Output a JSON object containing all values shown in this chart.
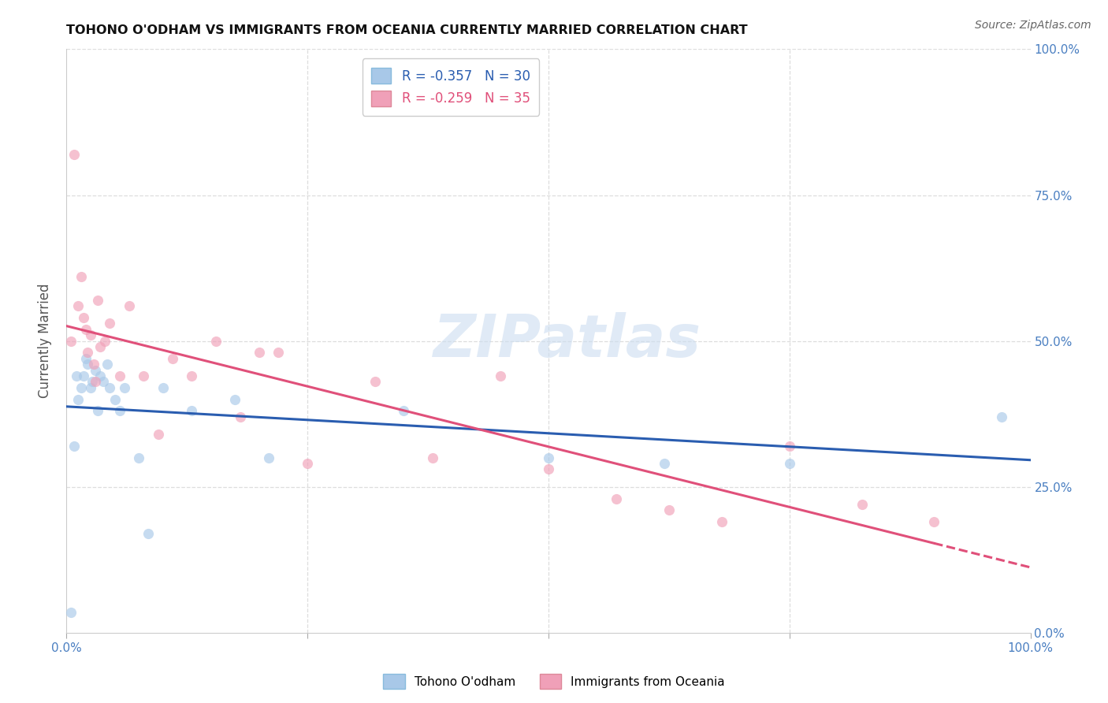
{
  "title": "TOHONO O'ODHAM VS IMMIGRANTS FROM OCEANIA CURRENTLY MARRIED CORRELATION CHART",
  "source": "Source: ZipAtlas.com",
  "ylabel": "Currently Married",
  "xlim": [
    0.0,
    1.0
  ],
  "ylim": [
    0.0,
    1.0
  ],
  "grid_color": "#dddddd",
  "background_color": "#ffffff",
  "blue_scatter_x": [
    0.005,
    0.008,
    0.01,
    0.012,
    0.015,
    0.018,
    0.02,
    0.022,
    0.025,
    0.027,
    0.03,
    0.032,
    0.035,
    0.038,
    0.042,
    0.045,
    0.05,
    0.055,
    0.06,
    0.075,
    0.085,
    0.1,
    0.13,
    0.175,
    0.21,
    0.35,
    0.5,
    0.62,
    0.75,
    0.97
  ],
  "blue_scatter_y": [
    0.035,
    0.32,
    0.44,
    0.4,
    0.42,
    0.44,
    0.47,
    0.46,
    0.42,
    0.43,
    0.45,
    0.38,
    0.44,
    0.43,
    0.46,
    0.42,
    0.4,
    0.38,
    0.42,
    0.3,
    0.17,
    0.42,
    0.38,
    0.4,
    0.3,
    0.38,
    0.3,
    0.29,
    0.29,
    0.37
  ],
  "pink_scatter_x": [
    0.005,
    0.008,
    0.012,
    0.015,
    0.018,
    0.02,
    0.022,
    0.025,
    0.028,
    0.03,
    0.032,
    0.035,
    0.04,
    0.045,
    0.055,
    0.065,
    0.08,
    0.095,
    0.11,
    0.13,
    0.155,
    0.18,
    0.2,
    0.22,
    0.25,
    0.32,
    0.38,
    0.45,
    0.5,
    0.57,
    0.625,
    0.68,
    0.75,
    0.825,
    0.9
  ],
  "pink_scatter_y": [
    0.5,
    0.82,
    0.56,
    0.61,
    0.54,
    0.52,
    0.48,
    0.51,
    0.46,
    0.43,
    0.57,
    0.49,
    0.5,
    0.53,
    0.44,
    0.56,
    0.44,
    0.34,
    0.47,
    0.44,
    0.5,
    0.37,
    0.48,
    0.48,
    0.29,
    0.43,
    0.3,
    0.44,
    0.28,
    0.23,
    0.21,
    0.19,
    0.32,
    0.22,
    0.19
  ],
  "blue_line_color": "#2a5db0",
  "pink_line_color": "#e0507a",
  "blue_scatter_color": "#a8c8e8",
  "pink_scatter_color": "#f0a0b8",
  "scatter_size": 90,
  "scatter_alpha": 0.65,
  "line_width": 2.2,
  "legend_label_blue": "Tohono O'odham",
  "legend_label_pink": "Immigrants from Oceania",
  "legend_R_blue": "R = -0.357",
  "legend_N_blue": "N = 30",
  "legend_R_pink": "R = -0.259",
  "legend_N_pink": "N = 35"
}
